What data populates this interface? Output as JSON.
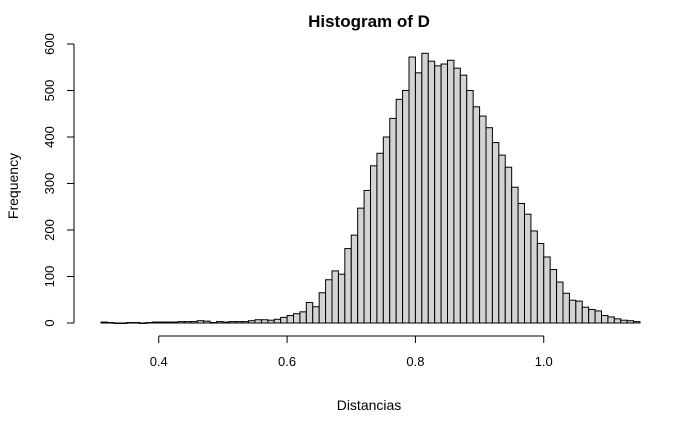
{
  "chart_data": {
    "type": "bar",
    "title": "Histogram of D",
    "xlabel": "Distancias",
    "ylabel": "Frequency",
    "xlim": [
      0.31,
      1.15
    ],
    "ylim": [
      0,
      600
    ],
    "x_ticks": [
      0.4,
      0.6,
      0.8,
      1.0
    ],
    "x_tick_labels": [
      "0.4",
      "0.6",
      "0.8",
      "1.0"
    ],
    "y_ticks": [
      0,
      100,
      200,
      300,
      400,
      500,
      600
    ],
    "y_tick_labels": [
      "0",
      "100",
      "200",
      "300",
      "400",
      "500",
      "600"
    ],
    "bin_width": 0.01,
    "bin_start": 0.31,
    "values": [
      2,
      1,
      0,
      0,
      1,
      1,
      0,
      1,
      2,
      2,
      2,
      2,
      3,
      3,
      3,
      5,
      4,
      1,
      3,
      2,
      3,
      3,
      3,
      5,
      7,
      7,
      6,
      8,
      12,
      16,
      20,
      24,
      44,
      35,
      65,
      93,
      112,
      105,
      160,
      189,
      247,
      285,
      338,
      365,
      400,
      440,
      481,
      500,
      572,
      538,
      580,
      563,
      553,
      557,
      565,
      548,
      533,
      500,
      465,
      445,
      420,
      388,
      361,
      335,
      292,
      257,
      234,
      198,
      171,
      142,
      115,
      88,
      64,
      49,
      47,
      34,
      29,
      26,
      16,
      13,
      9,
      6,
      5,
      3
    ],
    "bar_fill": "#d3d3d3",
    "grid": false,
    "legend": "none"
  }
}
